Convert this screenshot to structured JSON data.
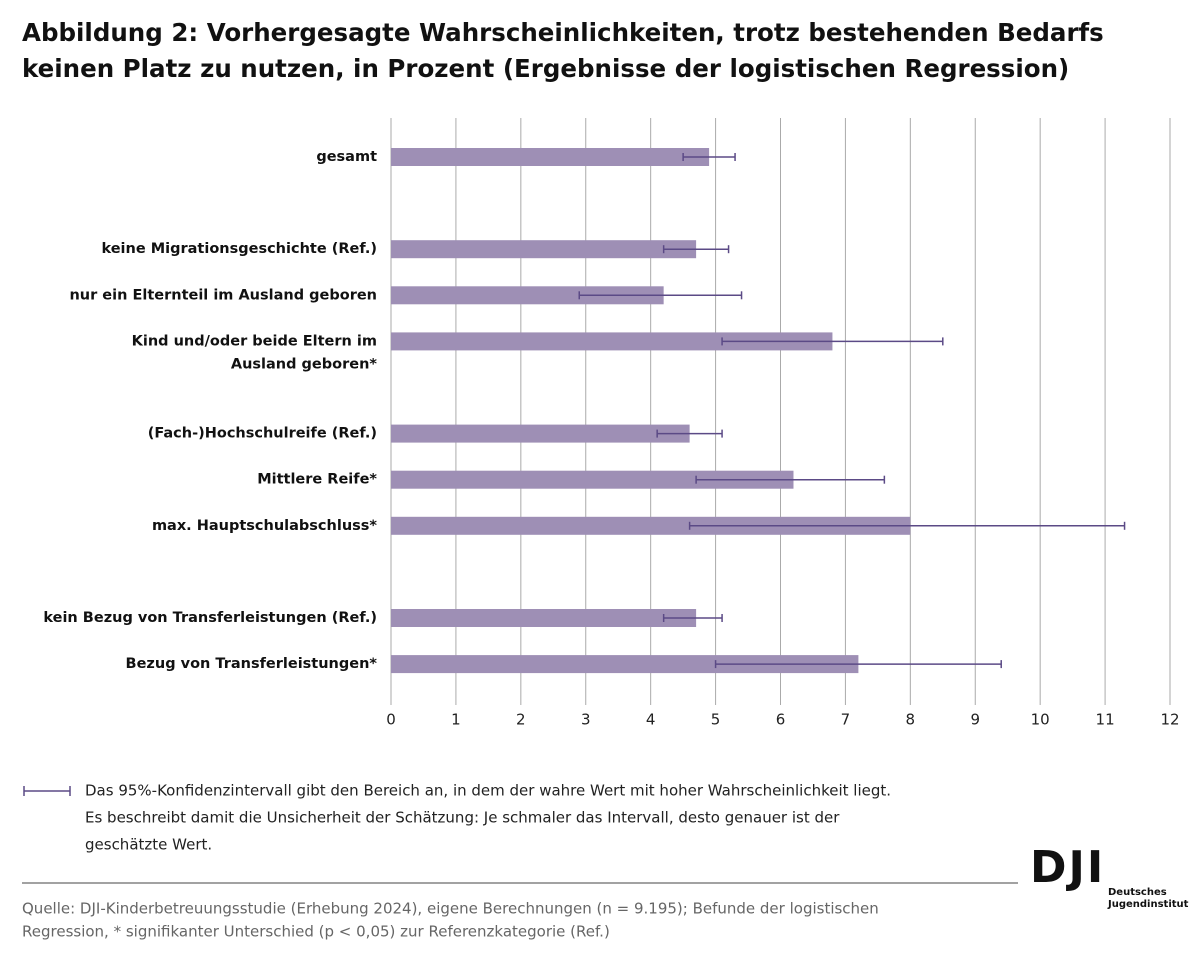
{
  "chart_data": {
    "type": "bar",
    "orientation": "horizontal",
    "title": [
      "Abbildung 2: Vorhergesagte Wahrscheinlichkeiten, trotz bestehenden Bedarfs",
      "keinen Platz zu nutzen, in Prozent (Ergebnisse der logistischen Regression)"
    ],
    "categories": [
      "gesamt",
      null,
      "keine Migrationsgeschichte (Ref.)",
      "nur ein Elternteil im Ausland geboren",
      [
        "Kind und/oder beide Eltern im",
        "Ausland geboren*"
      ],
      null,
      "(Fach-)Hochschulreife (Ref.)",
      "Mittlere Reife*",
      "max. Hauptschulabschluss*",
      null,
      "kein Bezug von Transferleistungen (Ref.)",
      "Bezug von Transferleistungen*"
    ],
    "values": [
      4.9,
      null,
      4.7,
      4.2,
      6.8,
      null,
      4.6,
      6.2,
      8.0,
      null,
      4.7,
      7.2
    ],
    "ci_low": [
      4.5,
      null,
      4.2,
      2.9,
      5.1,
      null,
      4.1,
      4.7,
      4.6,
      null,
      4.2,
      5.0
    ],
    "ci_high": [
      5.3,
      null,
      5.2,
      5.4,
      8.5,
      null,
      5.1,
      7.6,
      11.3,
      null,
      5.1,
      9.4
    ],
    "color": "#9e8fb5",
    "error_color": "#5b4a86",
    "xlim": [
      0,
      12
    ],
    "xticks": [
      0,
      1,
      2,
      3,
      4,
      5,
      6,
      7,
      8,
      9,
      10,
      11,
      12
    ],
    "grid": true,
    "ci_note": [
      "Das 95%-Konfidenzintervall gibt den Bereich an, in dem der wahre Wert mit hoher Wahrscheinlichkeit liegt.",
      "Es beschreibt damit die Unsicherheit der Schätzung: Je schmaler das Intervall, desto genauer ist der",
      "geschätzte Wert."
    ],
    "source": [
      "Quelle: DJI-Kinderbetreuungsstudie (Erhebung 2024), eigene Berechnungen (n = 9.195); Befunde der logistischen",
      "Regression, * signifikanter Unterschied (p < 0,05) zur Referenzkategorie (Ref.)"
    ],
    "logo": {
      "mark": "DJI",
      "name": [
        "Deutsches",
        "Jugendinstitut"
      ]
    }
  }
}
